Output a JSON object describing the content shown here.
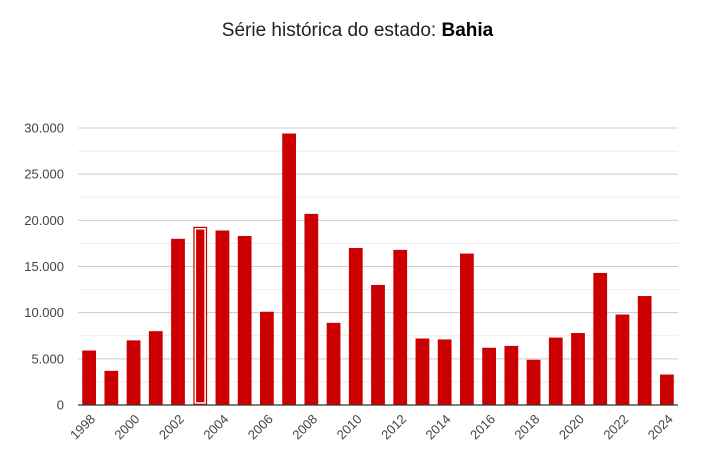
{
  "title": {
    "prefix": "Série histórica do estado:",
    "state": "Bahia"
  },
  "colors": {
    "bar": "#cc0000",
    "highlight_outline": "#ffffff",
    "gridline_major": "#cccccc",
    "gridline_minor": "#ebebeb",
    "axis": "#333333"
  },
  "chart_data": {
    "type": "bar",
    "title": "Série histórica do estado: Bahia",
    "categories": [
      "1998",
      "1999",
      "2000",
      "2001",
      "2002",
      "2003",
      "2004",
      "2005",
      "2006",
      "2007",
      "2008",
      "2009",
      "2010",
      "2011",
      "2012",
      "2013",
      "2014",
      "2015",
      "2016",
      "2017",
      "2018",
      "2019",
      "2020",
      "2021",
      "2022",
      "2023",
      "2024"
    ],
    "values": [
      5900,
      3700,
      7000,
      8000,
      18000,
      19300,
      18900,
      18300,
      10100,
      29400,
      20700,
      8900,
      17000,
      13000,
      16800,
      7200,
      7100,
      16400,
      6200,
      6400,
      4900,
      7300,
      7800,
      14300,
      9800,
      11800,
      3300
    ],
    "highlighted_category": "2003",
    "x_tick_labels": [
      "1998",
      "2000",
      "2002",
      "2004",
      "2006",
      "2008",
      "2010",
      "2012",
      "2014",
      "2016",
      "2018",
      "2020",
      "2022",
      "2024"
    ],
    "y_tick_labels": [
      "0",
      "5.000",
      "10.000",
      "15.000",
      "20.000",
      "25.000",
      "30.000"
    ],
    "ylim": [
      0,
      30000
    ],
    "xlabel": "",
    "ylabel": "",
    "grid": true,
    "legend": "none"
  }
}
